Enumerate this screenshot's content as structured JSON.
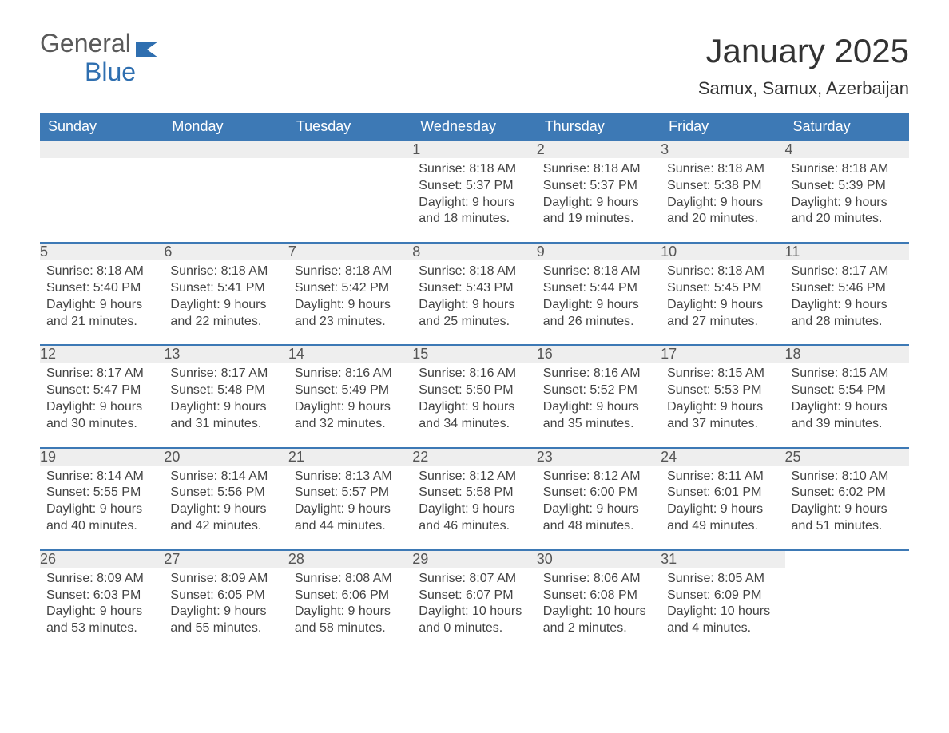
{
  "logo": {
    "text1": "General",
    "text2": "Blue",
    "icon_color": "#2f6fb0"
  },
  "title": "January 2025",
  "location": "Samux, Samux, Azerbaijan",
  "colors": {
    "header_bg": "#3d79b5",
    "header_text": "#ffffff",
    "daynum_bg": "#eeeeee",
    "daynum_text": "#555555",
    "border_accent": "#3d79b5",
    "body_text": "#444444",
    "title_text": "#333333",
    "logo_gray": "#5a5a5a",
    "logo_blue": "#2f6fb0",
    "background": "#ffffff"
  },
  "fonts": {
    "title_size_pt": 32,
    "location_size_pt": 16,
    "header_size_pt": 14,
    "daynum_size_pt": 14,
    "body_size_pt": 12
  },
  "day_headers": [
    "Sunday",
    "Monday",
    "Tuesday",
    "Wednesday",
    "Thursday",
    "Friday",
    "Saturday"
  ],
  "weeks": [
    [
      null,
      null,
      null,
      {
        "num": "1",
        "sunrise": "Sunrise: 8:18 AM",
        "sunset": "Sunset: 5:37 PM",
        "daylight1": "Daylight: 9 hours",
        "daylight2": "and 18 minutes."
      },
      {
        "num": "2",
        "sunrise": "Sunrise: 8:18 AM",
        "sunset": "Sunset: 5:37 PM",
        "daylight1": "Daylight: 9 hours",
        "daylight2": "and 19 minutes."
      },
      {
        "num": "3",
        "sunrise": "Sunrise: 8:18 AM",
        "sunset": "Sunset: 5:38 PM",
        "daylight1": "Daylight: 9 hours",
        "daylight2": "and 20 minutes."
      },
      {
        "num": "4",
        "sunrise": "Sunrise: 8:18 AM",
        "sunset": "Sunset: 5:39 PM",
        "daylight1": "Daylight: 9 hours",
        "daylight2": "and 20 minutes."
      }
    ],
    [
      {
        "num": "5",
        "sunrise": "Sunrise: 8:18 AM",
        "sunset": "Sunset: 5:40 PM",
        "daylight1": "Daylight: 9 hours",
        "daylight2": "and 21 minutes."
      },
      {
        "num": "6",
        "sunrise": "Sunrise: 8:18 AM",
        "sunset": "Sunset: 5:41 PM",
        "daylight1": "Daylight: 9 hours",
        "daylight2": "and 22 minutes."
      },
      {
        "num": "7",
        "sunrise": "Sunrise: 8:18 AM",
        "sunset": "Sunset: 5:42 PM",
        "daylight1": "Daylight: 9 hours",
        "daylight2": "and 23 minutes."
      },
      {
        "num": "8",
        "sunrise": "Sunrise: 8:18 AM",
        "sunset": "Sunset: 5:43 PM",
        "daylight1": "Daylight: 9 hours",
        "daylight2": "and 25 minutes."
      },
      {
        "num": "9",
        "sunrise": "Sunrise: 8:18 AM",
        "sunset": "Sunset: 5:44 PM",
        "daylight1": "Daylight: 9 hours",
        "daylight2": "and 26 minutes."
      },
      {
        "num": "10",
        "sunrise": "Sunrise: 8:18 AM",
        "sunset": "Sunset: 5:45 PM",
        "daylight1": "Daylight: 9 hours",
        "daylight2": "and 27 minutes."
      },
      {
        "num": "11",
        "sunrise": "Sunrise: 8:17 AM",
        "sunset": "Sunset: 5:46 PM",
        "daylight1": "Daylight: 9 hours",
        "daylight2": "and 28 minutes."
      }
    ],
    [
      {
        "num": "12",
        "sunrise": "Sunrise: 8:17 AM",
        "sunset": "Sunset: 5:47 PM",
        "daylight1": "Daylight: 9 hours",
        "daylight2": "and 30 minutes."
      },
      {
        "num": "13",
        "sunrise": "Sunrise: 8:17 AM",
        "sunset": "Sunset: 5:48 PM",
        "daylight1": "Daylight: 9 hours",
        "daylight2": "and 31 minutes."
      },
      {
        "num": "14",
        "sunrise": "Sunrise: 8:16 AM",
        "sunset": "Sunset: 5:49 PM",
        "daylight1": "Daylight: 9 hours",
        "daylight2": "and 32 minutes."
      },
      {
        "num": "15",
        "sunrise": "Sunrise: 8:16 AM",
        "sunset": "Sunset: 5:50 PM",
        "daylight1": "Daylight: 9 hours",
        "daylight2": "and 34 minutes."
      },
      {
        "num": "16",
        "sunrise": "Sunrise: 8:16 AM",
        "sunset": "Sunset: 5:52 PM",
        "daylight1": "Daylight: 9 hours",
        "daylight2": "and 35 minutes."
      },
      {
        "num": "17",
        "sunrise": "Sunrise: 8:15 AM",
        "sunset": "Sunset: 5:53 PM",
        "daylight1": "Daylight: 9 hours",
        "daylight2": "and 37 minutes."
      },
      {
        "num": "18",
        "sunrise": "Sunrise: 8:15 AM",
        "sunset": "Sunset: 5:54 PM",
        "daylight1": "Daylight: 9 hours",
        "daylight2": "and 39 minutes."
      }
    ],
    [
      {
        "num": "19",
        "sunrise": "Sunrise: 8:14 AM",
        "sunset": "Sunset: 5:55 PM",
        "daylight1": "Daylight: 9 hours",
        "daylight2": "and 40 minutes."
      },
      {
        "num": "20",
        "sunrise": "Sunrise: 8:14 AM",
        "sunset": "Sunset: 5:56 PM",
        "daylight1": "Daylight: 9 hours",
        "daylight2": "and 42 minutes."
      },
      {
        "num": "21",
        "sunrise": "Sunrise: 8:13 AM",
        "sunset": "Sunset: 5:57 PM",
        "daylight1": "Daylight: 9 hours",
        "daylight2": "and 44 minutes."
      },
      {
        "num": "22",
        "sunrise": "Sunrise: 8:12 AM",
        "sunset": "Sunset: 5:58 PM",
        "daylight1": "Daylight: 9 hours",
        "daylight2": "and 46 minutes."
      },
      {
        "num": "23",
        "sunrise": "Sunrise: 8:12 AM",
        "sunset": "Sunset: 6:00 PM",
        "daylight1": "Daylight: 9 hours",
        "daylight2": "and 48 minutes."
      },
      {
        "num": "24",
        "sunrise": "Sunrise: 8:11 AM",
        "sunset": "Sunset: 6:01 PM",
        "daylight1": "Daylight: 9 hours",
        "daylight2": "and 49 minutes."
      },
      {
        "num": "25",
        "sunrise": "Sunrise: 8:10 AM",
        "sunset": "Sunset: 6:02 PM",
        "daylight1": "Daylight: 9 hours",
        "daylight2": "and 51 minutes."
      }
    ],
    [
      {
        "num": "26",
        "sunrise": "Sunrise: 8:09 AM",
        "sunset": "Sunset: 6:03 PM",
        "daylight1": "Daylight: 9 hours",
        "daylight2": "and 53 minutes."
      },
      {
        "num": "27",
        "sunrise": "Sunrise: 8:09 AM",
        "sunset": "Sunset: 6:05 PM",
        "daylight1": "Daylight: 9 hours",
        "daylight2": "and 55 minutes."
      },
      {
        "num": "28",
        "sunrise": "Sunrise: 8:08 AM",
        "sunset": "Sunset: 6:06 PM",
        "daylight1": "Daylight: 9 hours",
        "daylight2": "and 58 minutes."
      },
      {
        "num": "29",
        "sunrise": "Sunrise: 8:07 AM",
        "sunset": "Sunset: 6:07 PM",
        "daylight1": "Daylight: 10 hours",
        "daylight2": "and 0 minutes."
      },
      {
        "num": "30",
        "sunrise": "Sunrise: 8:06 AM",
        "sunset": "Sunset: 6:08 PM",
        "daylight1": "Daylight: 10 hours",
        "daylight2": "and 2 minutes."
      },
      {
        "num": "31",
        "sunrise": "Sunrise: 8:05 AM",
        "sunset": "Sunset: 6:09 PM",
        "daylight1": "Daylight: 10 hours",
        "daylight2": "and 4 minutes."
      },
      null
    ]
  ]
}
